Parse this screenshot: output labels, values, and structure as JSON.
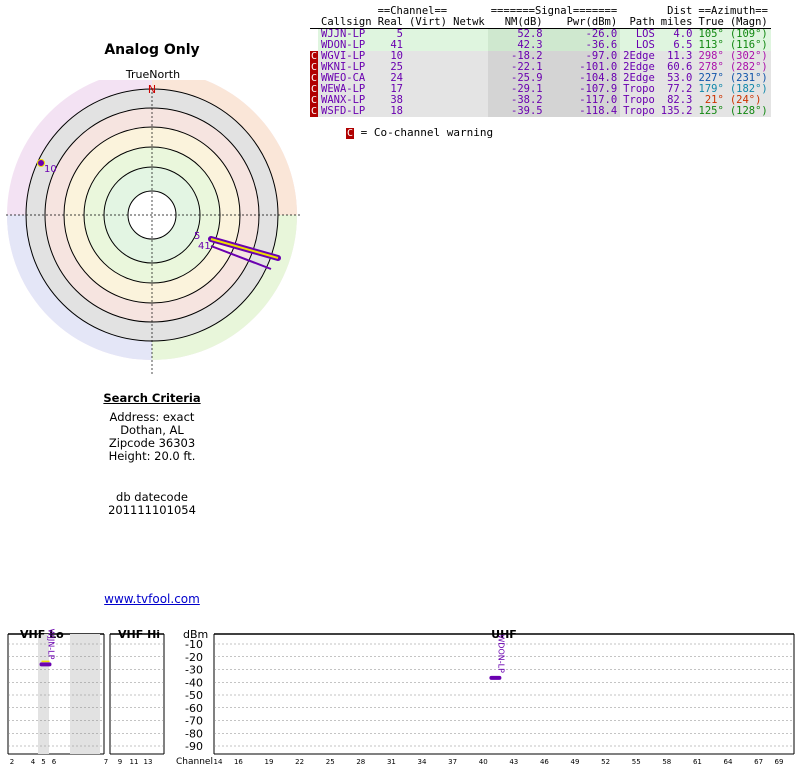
{
  "page": {
    "title": "Analog Only",
    "true_north_label": "TrueNorth",
    "north_marker": "N"
  },
  "polar": {
    "stations": [
      {
        "label": "10",
        "color": "#6a00b0"
      },
      {
        "label": "5",
        "color": "#6a00b0"
      },
      {
        "label": "41",
        "color": "#6a00b0"
      }
    ]
  },
  "table": {
    "group_headers": {
      "channel": "==Channel==",
      "signal": "=======Signal=======",
      "azimuth": "==Azimuth=="
    },
    "headers": [
      "Callsign",
      "Real",
      "(Virt)",
      "Netwk",
      "NM(dB)",
      "Pwr(dBm)",
      "Path",
      "Dist",
      "True",
      "(Magn)"
    ],
    "dist_header_top": "Dist",
    "dist_header_bottom": "miles",
    "rows": [
      {
        "warn": "",
        "callsign": "WJJN-LP",
        "real": "5",
        "virt": "",
        "netwk": "",
        "nm": "52.8",
        "pwr": "-26.0",
        "path": "LOS",
        "dist": "4.0",
        "true_az": "105°",
        "magn": "(109°)",
        "bg": "#dff5df",
        "az_color": "#118811"
      },
      {
        "warn": "",
        "callsign": "WDON-LP",
        "real": "41",
        "virt": "",
        "netwk": "",
        "nm": "42.3",
        "pwr": "-36.6",
        "path": "LOS",
        "dist": "6.5",
        "true_az": "113°",
        "magn": "(116°)",
        "bg": "#dff5df",
        "az_color": "#118811"
      },
      {
        "warn": "C",
        "callsign": "WGVI-LP",
        "real": "10",
        "virt": "",
        "netwk": "",
        "nm": "-18.2",
        "pwr": "-97.0",
        "path": "2Edge",
        "dist": "11.3",
        "true_az": "298°",
        "magn": "(302°)",
        "bg": "#e4e4e4",
        "az_color": "#aa11aa"
      },
      {
        "warn": "C",
        "callsign": "WKNI-LP",
        "real": "25",
        "virt": "",
        "netwk": "",
        "nm": "-22.1",
        "pwr": "-101.0",
        "path": "2Edge",
        "dist": "60.6",
        "true_az": "278°",
        "magn": "(282°)",
        "bg": "#e4e4e4",
        "az_color": "#aa11aa"
      },
      {
        "warn": "C",
        "callsign": "WWEO-CA",
        "real": "24",
        "virt": "",
        "netwk": "",
        "nm": "-25.9",
        "pwr": "-104.8",
        "path": "2Edge",
        "dist": "53.0",
        "true_az": "227°",
        "magn": "(231°)",
        "bg": "#e4e4e4",
        "az_color": "#1155aa"
      },
      {
        "warn": "C",
        "callsign": "WEWA-LP",
        "real": "17",
        "virt": "",
        "netwk": "",
        "nm": "-29.1",
        "pwr": "-107.9",
        "path": "Tropo",
        "dist": "77.2",
        "true_az": "179°",
        "magn": "(182°)",
        "bg": "#e4e4e4",
        "az_color": "#1188aa"
      },
      {
        "warn": "C",
        "callsign": "WANX-LP",
        "real": "38",
        "virt": "",
        "netwk": "",
        "nm": "-38.2",
        "pwr": "-117.0",
        "path": "Tropo",
        "dist": "82.3",
        "true_az": "21°",
        "magn": "(24°)",
        "bg": "#e4e4e4",
        "az_color": "#cc3300"
      },
      {
        "warn": "C",
        "callsign": "WSFD-LP",
        "real": "18",
        "virt": "",
        "netwk": "",
        "nm": "-39.5",
        "pwr": "-118.4",
        "path": "Tropo",
        "dist": "135.2",
        "true_az": "125°",
        "magn": "(128°)",
        "bg": "#e4e4e4",
        "az_color": "#118811"
      }
    ],
    "legend_box": "C",
    "legend_text": "= Co-channel warning"
  },
  "criteria": {
    "heading": "Search Criteria",
    "address": "Address: exact",
    "city": "Dothan, AL",
    "zipcode": "Zipcode 36303",
    "height": "Height: 20.0 ft.",
    "db_label": "db datecode",
    "db_value": "201111101054"
  },
  "footer": {
    "link": "www.tvfool.com"
  },
  "spectrum": {
    "vhf_lo_label": "VHF Lo",
    "vhf_hi_label": "VHF Hi",
    "uhf_label": "UHF",
    "dbm_label": "dBm",
    "channel_label": "Channel",
    "y_ticks": [
      "-10",
      "-20",
      "-30",
      "-40",
      "-50",
      "-60",
      "-70",
      "-80",
      "-90"
    ],
    "vhf_lo_ticks": [
      "2",
      "4",
      "5",
      "6"
    ],
    "vhf_hi_ticks": [
      "7",
      "9",
      "11",
      "13"
    ],
    "uhf_ticks": [
      "14",
      "16",
      "19",
      "22",
      "25",
      "28",
      "31",
      "34",
      "37",
      "40",
      "43",
      "46",
      "49",
      "52",
      "55",
      "58",
      "61",
      "64",
      "67",
      "69"
    ],
    "markers": [
      {
        "callsign": "WJJN-LP",
        "channel": 5,
        "dbm": -26.0
      },
      {
        "callsign": "WDON-LP",
        "channel": 41,
        "dbm": -36.6
      }
    ]
  }
}
